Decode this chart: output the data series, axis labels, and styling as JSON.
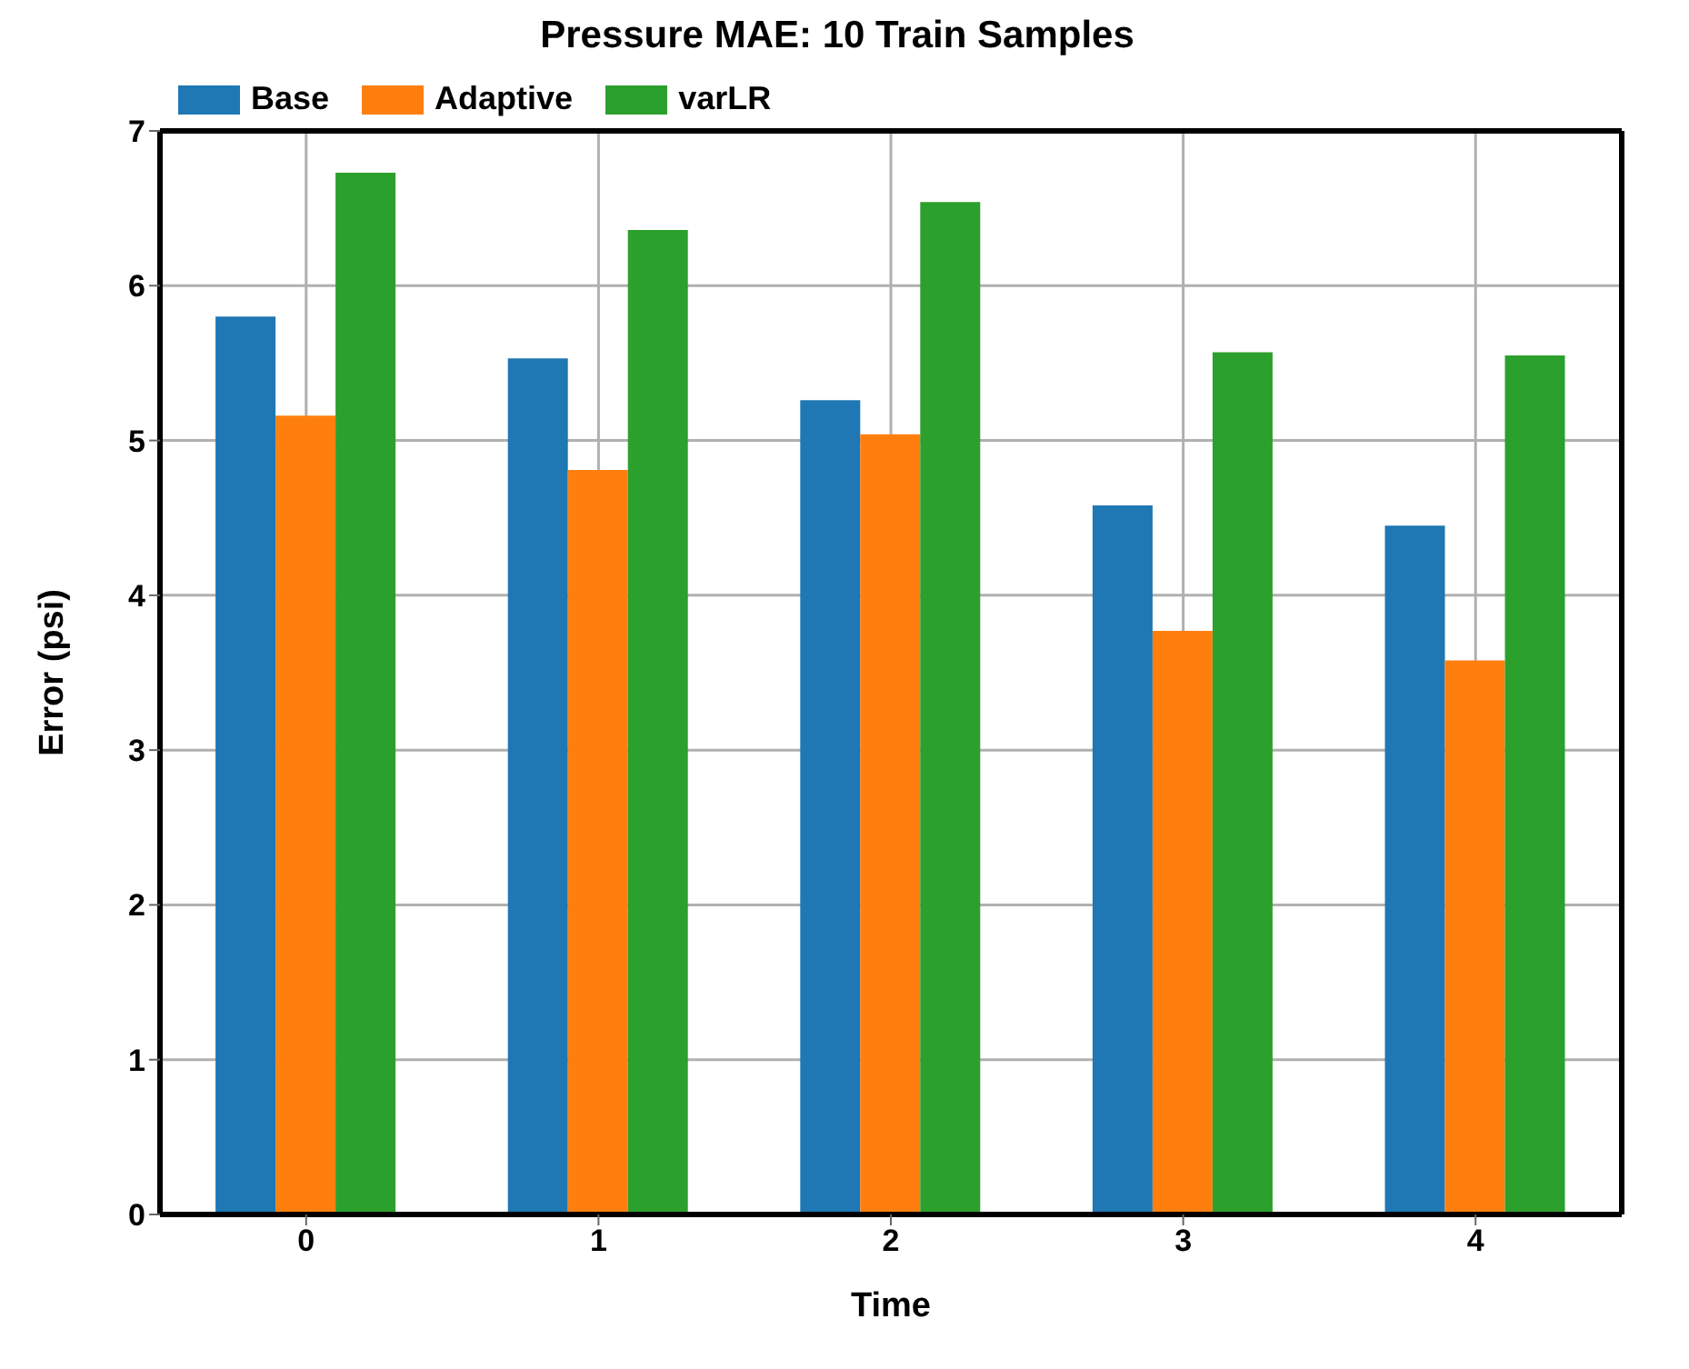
{
  "chart_data": {
    "type": "bar",
    "title": "Pressure MAE: 10 Train Samples",
    "xlabel": "Time",
    "ylabel": "Error (psi)",
    "categories": [
      "0",
      "1",
      "2",
      "3",
      "4"
    ],
    "series": [
      {
        "name": "Base",
        "color": "#1f77b4",
        "values": [
          5.8,
          5.53,
          5.26,
          4.58,
          4.45
        ]
      },
      {
        "name": "Adaptive",
        "color": "#ff7f0e",
        "values": [
          5.16,
          4.81,
          5.04,
          3.77,
          3.58
        ]
      },
      {
        "name": "varLR",
        "color": "#2ca02c",
        "values": [
          6.73,
          6.36,
          6.54,
          5.57,
          5.55
        ]
      }
    ],
    "ylim": [
      0,
      7
    ],
    "yticks": [
      0,
      1,
      2,
      3,
      4,
      5,
      6,
      7
    ],
    "grid": true,
    "legend": "top left"
  }
}
